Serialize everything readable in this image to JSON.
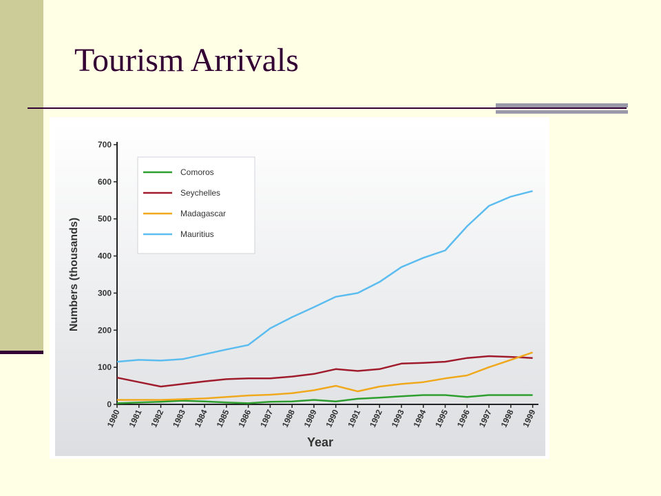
{
  "slide": {
    "title": "Tourism Arrivals"
  },
  "colors": {
    "background": "#ffffe5",
    "side_bar": "#cccc99",
    "accent": "#330033",
    "rule_bar": "#9999aa",
    "plot_bg_top": "#ffffff",
    "plot_bg_bottom": "#dcdee1"
  },
  "chart_data": {
    "type": "line",
    "title": "",
    "xlabel": "Year",
    "ylabel": "Numbers (thousands)",
    "x": [
      1980,
      1981,
      1982,
      1983,
      1984,
      1985,
      1986,
      1987,
      1988,
      1989,
      1990,
      1991,
      1992,
      1993,
      1994,
      1995,
      1996,
      1997,
      1998,
      1999
    ],
    "xlim": [
      1980,
      1999.2
    ],
    "ylim": [
      0,
      700
    ],
    "yticks": [
      0,
      100,
      200,
      300,
      400,
      500,
      600,
      700
    ],
    "grid": false,
    "legend_position": "top-left",
    "series": [
      {
        "name": "Comoros",
        "color": "#2e9e2e",
        "values": [
          3,
          5,
          7,
          10,
          8,
          5,
          3,
          7,
          8,
          12,
          8,
          15,
          18,
          22,
          25,
          25,
          20,
          25,
          25,
          25
        ]
      },
      {
        "name": "Seychelles",
        "color": "#a01c2c",
        "values": [
          72,
          60,
          48,
          55,
          62,
          68,
          70,
          70,
          75,
          82,
          95,
          90,
          95,
          110,
          112,
          115,
          125,
          130,
          128,
          125
        ]
      },
      {
        "name": "Madagascar",
        "color": "#f0a81c",
        "values": [
          12,
          12,
          12,
          14,
          16,
          20,
          24,
          26,
          30,
          38,
          50,
          35,
          48,
          55,
          60,
          70,
          78,
          100,
          120,
          140
        ]
      },
      {
        "name": "Mauritius",
        "color": "#5bbcf0",
        "values": [
          115,
          120,
          118,
          122,
          135,
          148,
          160,
          205,
          235,
          262,
          290,
          300,
          330,
          370,
          395,
          415,
          480,
          535,
          560,
          575
        ]
      }
    ]
  }
}
